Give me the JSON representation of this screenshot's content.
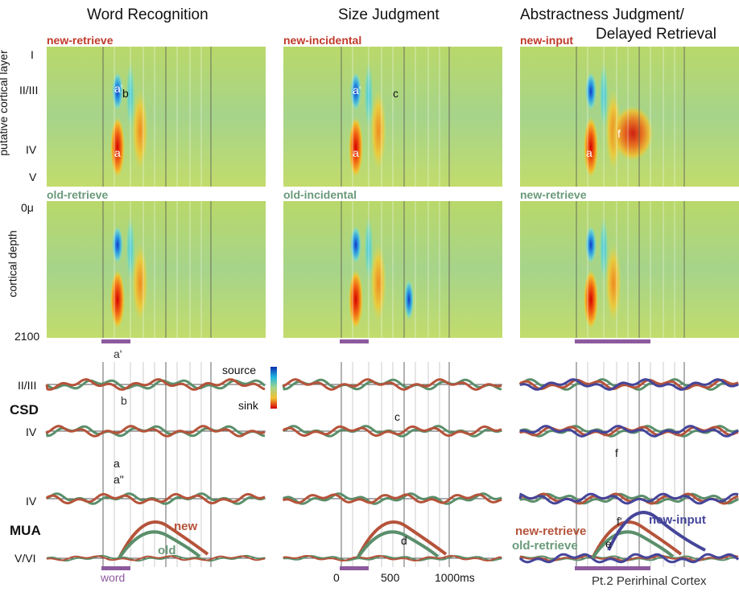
{
  "chart_data": {
    "type": "heatmap",
    "columns": [
      {
        "title": "Word Recognition",
        "top_condition": "new-retrieve",
        "bottom_condition": "old-retrieve",
        "csd_upper": [
          "a'",
          "b"
        ],
        "csd_lower": [
          "a"
        ],
        "mua_upper": [
          "a\""
        ],
        "mua_series": [
          "new",
          "old"
        ],
        "stim_label": "word"
      },
      {
        "title": "Size Judgment",
        "top_condition": "new-incidental",
        "bottom_condition": "old-incidental",
        "csd_upper": [
          "c"
        ],
        "mua_lower": [
          "d"
        ],
        "x_ticks": [
          "0",
          "500",
          "1000ms"
        ]
      },
      {
        "title": "Abstractness Judgment/",
        "title2": "Delayed Retrieval",
        "top_condition": "new-input",
        "bottom_condition": "new-retrieve",
        "csd_lower": [
          "f"
        ],
        "mua_labels": [
          "new-retrieve",
          "old-retrieve",
          "new-input"
        ],
        "mua_inner": [
          "f'",
          "e"
        ],
        "footer": "Pt.2 Perirhinal Cortex"
      }
    ],
    "heatmap_labels": {
      "a_prime": "a'",
      "b": "b",
      "a": "a",
      "c": "c",
      "f": "f"
    },
    "layers": [
      "I",
      "II/III",
      "IV",
      "V"
    ],
    "depth": [
      "0μ",
      "2100"
    ],
    "ylabels": [
      "putative cortical layer",
      "cortical depth"
    ],
    "trace_rows": [
      "II/III",
      "IV",
      "IV",
      "V/VI"
    ],
    "section_labels": [
      "CSD",
      "MUA"
    ],
    "colorbar": {
      "top": "source",
      "bottom": "sink"
    },
    "xlim_ms": [
      -200,
      1000
    ],
    "colors": {
      "new": "#b5533a",
      "old": "#5a8f6b",
      "input": "#45459a",
      "stim": "#8e5a9e"
    }
  }
}
